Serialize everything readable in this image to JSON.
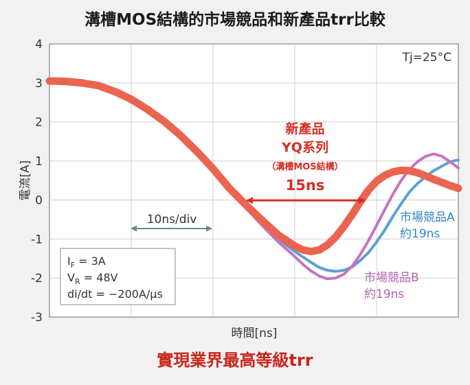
{
  "chart_data": {
    "type": "line",
    "title": "溝槽MOS結構的市場競品和新產品trr比較",
    "xlabel": "時間[ns]",
    "ylabel": "電流[A]",
    "ylim": [
      -3,
      4
    ],
    "yticks": [
      "4",
      "3",
      "2",
      "1",
      "0",
      "-1",
      "-2",
      "-3"
    ],
    "grid": true,
    "x_range_ns": [
      0,
      50
    ],
    "series": [
      {
        "name": "市場競品A",
        "color": "#5b9fd6",
        "points": [
          [
            0,
            3.05
          ],
          [
            2,
            3.04
          ],
          [
            4,
            3.0
          ],
          [
            6,
            2.93
          ],
          [
            8,
            2.78
          ],
          [
            10,
            2.58
          ],
          [
            12,
            2.32
          ],
          [
            14,
            2.02
          ],
          [
            16,
            1.66
          ],
          [
            18,
            1.25
          ],
          [
            20,
            0.8
          ],
          [
            22,
            0.3
          ],
          [
            24,
            -0.2
          ],
          [
            26,
            -0.62
          ],
          [
            28,
            -1.0
          ],
          [
            30,
            -1.32
          ],
          [
            32,
            -1.6
          ],
          [
            33,
            -1.73
          ],
          [
            34,
            -1.8
          ],
          [
            35,
            -1.83
          ],
          [
            36,
            -1.8
          ],
          [
            37,
            -1.72
          ],
          [
            38,
            -1.55
          ],
          [
            39,
            -1.35
          ],
          [
            40,
            -1.08
          ],
          [
            41,
            -0.77
          ],
          [
            42,
            -0.42
          ],
          [
            43,
            -0.1
          ],
          [
            44,
            0.2
          ],
          [
            45,
            0.42
          ],
          [
            46,
            0.6
          ],
          [
            47,
            0.75
          ],
          [
            48,
            0.87
          ],
          [
            49,
            0.98
          ],
          [
            50,
            1.03
          ]
        ]
      },
      {
        "name": "市場競品B",
        "color": "#c473c2",
        "points": [
          [
            0,
            3.05
          ],
          [
            2,
            3.04
          ],
          [
            4,
            3.0
          ],
          [
            6,
            2.93
          ],
          [
            8,
            2.78
          ],
          [
            10,
            2.58
          ],
          [
            12,
            2.32
          ],
          [
            14,
            2.02
          ],
          [
            16,
            1.66
          ],
          [
            18,
            1.25
          ],
          [
            20,
            0.8
          ],
          [
            22,
            0.3
          ],
          [
            24,
            -0.2
          ],
          [
            26,
            -0.65
          ],
          [
            28,
            -1.08
          ],
          [
            30,
            -1.45
          ],
          [
            31,
            -1.65
          ],
          [
            32,
            -1.82
          ],
          [
            33,
            -1.95
          ],
          [
            34,
            -2.02
          ],
          [
            35,
            -2.0
          ],
          [
            36,
            -1.9
          ],
          [
            37,
            -1.7
          ],
          [
            38,
            -1.4
          ],
          [
            39,
            -1.05
          ],
          [
            40,
            -0.65
          ],
          [
            41,
            -0.25
          ],
          [
            42,
            0.15
          ],
          [
            43,
            0.5
          ],
          [
            44,
            0.78
          ],
          [
            45,
            0.98
          ],
          [
            46,
            1.12
          ],
          [
            47,
            1.18
          ],
          [
            48,
            1.12
          ],
          [
            49,
            0.98
          ],
          [
            50,
            0.82
          ]
        ]
      },
      {
        "name": "新產品",
        "color": "#ea6450",
        "points": [
          [
            0,
            3.05
          ],
          [
            2,
            3.04
          ],
          [
            4,
            3.0
          ],
          [
            6,
            2.93
          ],
          [
            8,
            2.78
          ],
          [
            10,
            2.58
          ],
          [
            12,
            2.32
          ],
          [
            14,
            2.02
          ],
          [
            16,
            1.66
          ],
          [
            18,
            1.25
          ],
          [
            20,
            0.8
          ],
          [
            22,
            0.3
          ],
          [
            24,
            -0.12
          ],
          [
            26,
            -0.52
          ],
          [
            28,
            -0.9
          ],
          [
            30,
            -1.18
          ],
          [
            31,
            -1.28
          ],
          [
            32,
            -1.32
          ],
          [
            33,
            -1.28
          ],
          [
            34,
            -1.15
          ],
          [
            35,
            -0.95
          ],
          [
            36,
            -0.68
          ],
          [
            37,
            -0.38
          ],
          [
            38,
            -0.05
          ],
          [
            39,
            0.25
          ],
          [
            40,
            0.48
          ],
          [
            41,
            0.63
          ],
          [
            42,
            0.72
          ],
          [
            43,
            0.76
          ],
          [
            44,
            0.75
          ],
          [
            45,
            0.7
          ],
          [
            46,
            0.62
          ],
          [
            47,
            0.53
          ],
          [
            48,
            0.45
          ],
          [
            49,
            0.37
          ],
          [
            50,
            0.3
          ]
        ]
      }
    ],
    "annotations": {
      "scale": "10ns/div",
      "condition_temp": "Tj=25°C",
      "new_product": {
        "line1": "新產品",
        "line2": "YQ系列",
        "line3": "（溝槽MOS結構）",
        "trr": "15ns"
      },
      "comp_a": {
        "name": "市場競品A",
        "trr": "約19ns"
      },
      "comp_b": {
        "name": "市場競品B",
        "trr": "約19ns"
      },
      "conditions": {
        "if_label": "I",
        "if_sub": "F",
        "if_value": " = 3A",
        "vr_label": "V",
        "vr_sub": "R",
        "vr_value": " = 48V",
        "didt": "di/dt = −200A/μs"
      }
    }
  },
  "footer": {
    "headline": "實現業界最高等級trr"
  },
  "colors": {
    "new_product_arrow": "#d42e22",
    "grid": "#cfcfcf",
    "plot_bg": "#ffffff"
  }
}
